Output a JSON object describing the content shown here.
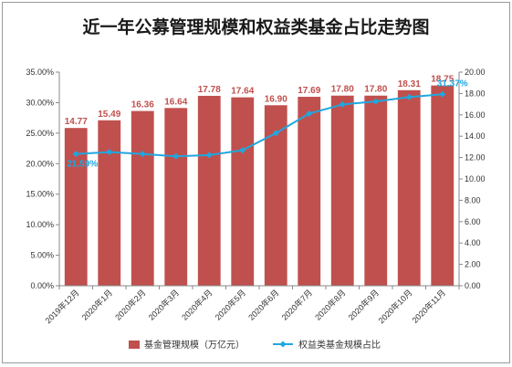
{
  "chart_data": {
    "type": "bar+line",
    "title": "近一年公募管理规模和权益类基金占比走势图",
    "categories": [
      "2019年12月",
      "2020年1月",
      "2020年2月",
      "2020年3月",
      "2020年4月",
      "2020年5月",
      "2020年6月",
      "2020年7月",
      "2020年8月",
      "2020年9月",
      "2020年10月",
      "2020年11月"
    ],
    "series": [
      {
        "name": "基金管理规模（万亿元）",
        "type": "bar",
        "axis": "right",
        "color": "#c0504d",
        "values": [
          14.77,
          15.49,
          16.36,
          16.64,
          17.78,
          17.64,
          16.9,
          17.69,
          17.8,
          17.8,
          18.31,
          18.75
        ],
        "labels": [
          "14.77",
          "15.49",
          "16.36",
          "16.64",
          "17.78",
          "17.64",
          "16.90",
          "17.69",
          "17.80",
          "17.80",
          "18.31",
          "18.75"
        ]
      },
      {
        "name": "权益类基金规模占比",
        "type": "line",
        "axis": "left",
        "color": "#1fa7df",
        "values": [
          21.59,
          21.9,
          21.6,
          21.2,
          21.4,
          22.2,
          25.0,
          28.2,
          29.7,
          30.2,
          30.9,
          31.37
        ],
        "labels": {
          "0": "21.59%",
          "11": "31.37%"
        }
      }
    ],
    "y_left": {
      "min": 0,
      "max": 35,
      "ticks": [
        "0.00%",
        "5.00%",
        "10.00%",
        "15.00%",
        "20.00%",
        "25.00%",
        "30.00%",
        "35.00%"
      ]
    },
    "y_right": {
      "min": 0,
      "max": 20,
      "ticks": [
        "0.00",
        "2.00",
        "4.00",
        "6.00",
        "8.00",
        "10.00",
        "12.00",
        "14.00",
        "16.00",
        "18.00",
        "20.00"
      ]
    },
    "grid": false,
    "legend": "bottom"
  }
}
